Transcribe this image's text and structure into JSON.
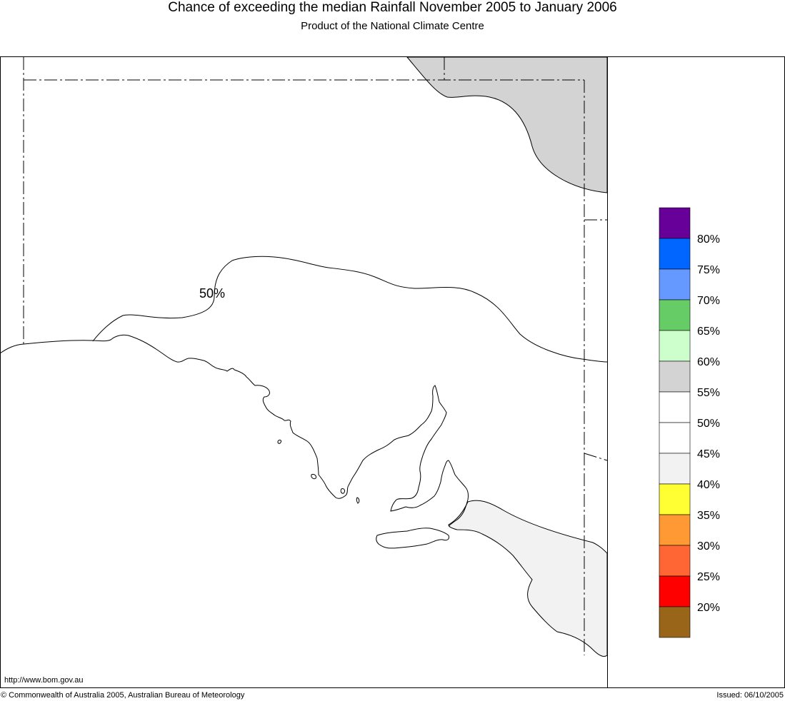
{
  "header": {
    "title": "Chance of exceeding the median Rainfall November 2005 to January 2006",
    "subtitle": "Product of the National Climate Centre"
  },
  "map": {
    "contour_label": "50%"
  },
  "legend": {
    "bands": [
      {
        "color": "#660099"
      },
      {
        "color": "#0066ff",
        "label": "80%"
      },
      {
        "color": "#6699ff",
        "label": "75%"
      },
      {
        "color": "#66cc66",
        "label": "70%"
      },
      {
        "color": "#ccffcc",
        "label": "65%"
      },
      {
        "color": "#d3d3d3",
        "label": "60%"
      },
      {
        "color": "#ffffff",
        "label": "55%"
      },
      {
        "color": "#ffffff",
        "label": "50%"
      },
      {
        "color": "#f2f2f2",
        "label": "45%"
      },
      {
        "color": "#ffff33",
        "label": "40%"
      },
      {
        "color": "#ff9933",
        "label": "35%"
      },
      {
        "color": "#ff6633",
        "label": "30%"
      },
      {
        "color": "#ff0000",
        "label": "25%"
      },
      {
        "color": "#996619",
        "label": "20%"
      }
    ]
  },
  "footer": {
    "url": "http://www.bom.gov.au",
    "copyright": "© Commonwealth of Australia 2005, Australian Bureau of Meteorology",
    "issued": "Issued: 06/10/2005"
  }
}
